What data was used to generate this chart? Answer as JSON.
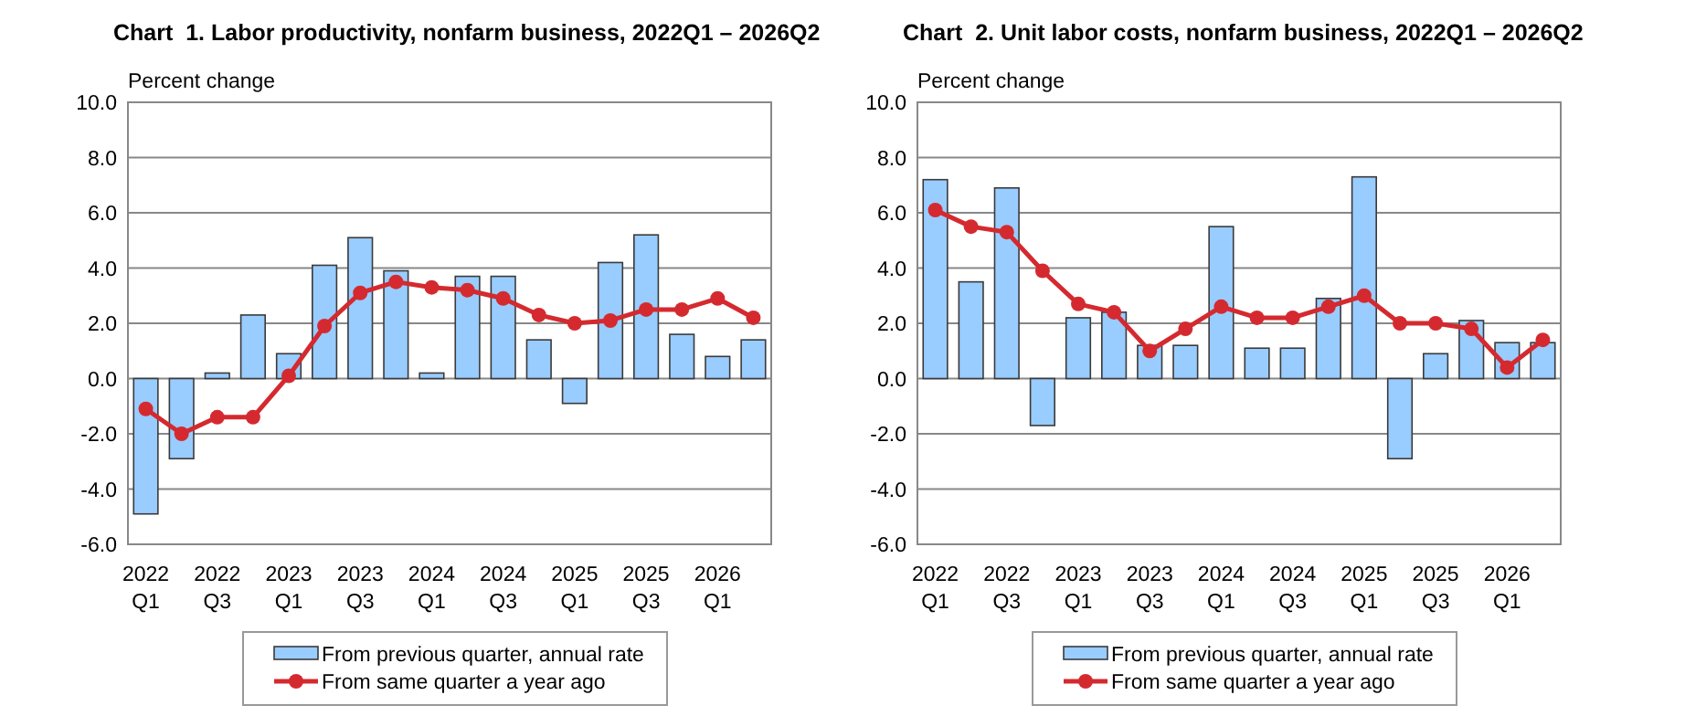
{
  "chart_data": [
    {
      "type": "bar",
      "title": "Chart  1. Labor productivity, nonfarm business, 2022Q1 – 2026Q2",
      "ylabel": "Percent change",
      "categories": [
        "2022 Q1",
        null,
        "2022 Q3",
        null,
        "2023 Q1",
        null,
        "2023 Q3",
        null,
        "2024 Q1",
        null,
        "2024 Q3",
        null,
        "2025 Q1",
        null,
        "2025 Q3",
        null,
        "2026 Q1",
        null
      ],
      "series": [
        {
          "name": "From previous quarter, annual rate",
          "color": "#99ccff",
          "values": [
            -4.9,
            -2.9,
            0.2,
            2.3,
            0.9,
            4.1,
            5.1,
            3.9,
            0.2,
            3.7,
            3.7,
            1.4,
            -0.9,
            4.2,
            5.2,
            1.6,
            0.8,
            1.4
          ]
        },
        {
          "name": "From same quarter a year ago",
          "type": "line",
          "color": "#d42a2f",
          "values": [
            -1.1,
            -2.0,
            -1.4,
            -1.4,
            0.1,
            1.9,
            3.1,
            3.5,
            3.3,
            3.2,
            2.9,
            2.3,
            2.0,
            2.1,
            2.5,
            2.5,
            2.9,
            2.2
          ]
        }
      ],
      "ylim": [
        -6,
        10
      ],
      "yticks": [
        {
          "value": -6,
          "label": "-6.0"
        },
        {
          "value": -4,
          "label": "-4.0"
        },
        {
          "value": -2,
          "label": "-2.0"
        },
        {
          "value": 0,
          "label": "0.0"
        },
        {
          "value": 2,
          "label": "2.0"
        },
        {
          "value": 4,
          "label": "4.0"
        },
        {
          "value": 6,
          "label": "6.0"
        },
        {
          "value": 8,
          "label": "8.0"
        },
        {
          "value": 10,
          "label": "10.0"
        }
      ],
      "grid": "y",
      "legend": "bottom",
      "marker": "circle"
    },
    {
      "type": "bar",
      "title": "Chart  2. Unit labor costs, nonfarm business, 2022Q1 – 2026Q2",
      "ylabel": "Percent change",
      "categories": [
        "2022 Q1",
        null,
        "2022 Q3",
        null,
        "2023 Q1",
        null,
        "2023 Q3",
        null,
        "2024 Q1",
        null,
        "2024 Q3",
        null,
        "2025 Q1",
        null,
        "2025 Q3",
        null,
        "2026 Q1",
        null
      ],
      "series": [
        {
          "name": "From previous quarter, annual rate",
          "color": "#99ccff",
          "values": [
            7.2,
            3.5,
            6.9,
            -1.7,
            2.2,
            2.4,
            1.2,
            1.2,
            5.5,
            1.1,
            1.1,
            2.9,
            7.3,
            -2.9,
            0.9,
            2.1,
            1.3,
            1.3
          ]
        },
        {
          "name": "From same quarter a year ago",
          "type": "line",
          "color": "#d42a2f",
          "values": [
            6.1,
            5.5,
            5.3,
            3.9,
            2.7,
            2.4,
            1.0,
            1.8,
            2.6,
            2.2,
            2.2,
            2.6,
            3.0,
            2.0,
            2.0,
            1.8,
            0.4,
            1.4
          ]
        }
      ],
      "ylim": [
        -6,
        10
      ],
      "yticks": [
        {
          "value": -6,
          "label": "-6.0"
        },
        {
          "value": -4,
          "label": "-4.0"
        },
        {
          "value": -2,
          "label": "-2.0"
        },
        {
          "value": 0,
          "label": "0.0"
        },
        {
          "value": 2,
          "label": "2.0"
        },
        {
          "value": 4,
          "label": "4.0"
        },
        {
          "value": 6,
          "label": "6.0"
        },
        {
          "value": 8,
          "label": "8.0"
        },
        {
          "value": 10,
          "label": "10.0"
        }
      ],
      "grid": "y",
      "legend": "bottom",
      "marker": "circle"
    }
  ]
}
